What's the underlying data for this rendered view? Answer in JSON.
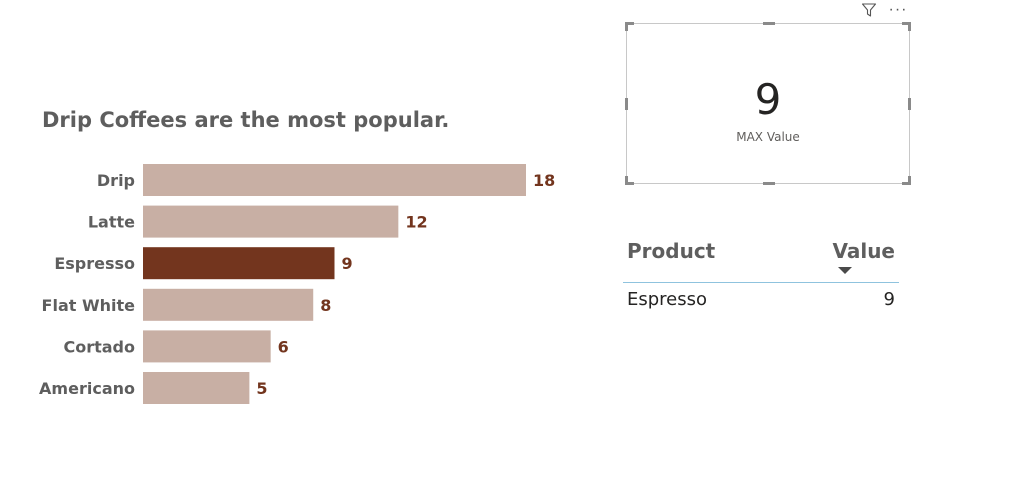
{
  "chart_data": {
    "type": "bar",
    "orientation": "horizontal",
    "title": "Drip Coffees are the most popular.",
    "categories": [
      "Drip",
      "Latte",
      "Espresso",
      "Flat White",
      "Cortado",
      "Americano"
    ],
    "values": [
      18,
      12,
      9,
      8,
      6,
      5
    ],
    "data_labels": [
      "18",
      "12",
      "9",
      "8",
      "6",
      "5"
    ],
    "highlighted_category": "Espresso",
    "xlim": [
      0,
      18
    ],
    "grid": false,
    "colors": {
      "bar": "#c8afa4",
      "highlight": "#73351e",
      "data_label": "#73351e",
      "category_label": "#5e5e5e"
    }
  },
  "card": {
    "value": "9",
    "label": "MAX Value",
    "header_icons": [
      "filter-icon",
      "more-options-icon"
    ],
    "more_glyph": "···"
  },
  "table": {
    "columns": [
      "Product",
      "Value"
    ],
    "sort_column": "Value",
    "sort_direction": "descending",
    "rows": [
      {
        "product": "Espresso",
        "value": "9"
      }
    ],
    "header_rule_color": "#8fc3de"
  }
}
